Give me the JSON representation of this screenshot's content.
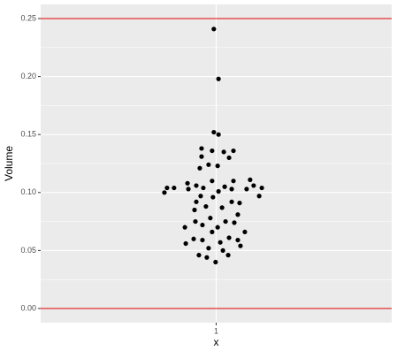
{
  "chart_data": {
    "type": "scatter",
    "xlabel": "x",
    "ylabel": "Volume",
    "xlim": [
      0.4,
      1.6
    ],
    "ylim": [
      -0.0122,
      0.2622
    ],
    "xticks": [
      1
    ],
    "yticks": [
      {
        "value": 0,
        "label": "0.00"
      },
      {
        "value": 0.05,
        "label": "0.05"
      },
      {
        "value": 0.1,
        "label": "0.10"
      },
      {
        "value": 0.15,
        "label": "0.15"
      },
      {
        "value": 0.2,
        "label": "0.20"
      },
      {
        "value": 0.25,
        "label": "0.25"
      }
    ],
    "grid": true,
    "hlines": [
      0,
      0.25
    ],
    "hline_color": "#e00000",
    "color": "#000000",
    "x": [
      0.992,
      1.008,
      0.992,
      1.008,
      0.95,
      0.986,
      1.026,
      1.059,
      0.95,
      1.044,
      0.974,
      1.005,
      0.944,
      1.116,
      0.986,
      1.059,
      0.902,
      0.932,
      1.029,
      1.128,
      0.832,
      0.856,
      0.905,
      0.956,
      1.053,
      1.104,
      1.156,
      0.823,
      1.008,
      1.147,
      0.989,
      0.947,
      0.932,
      1.053,
      1.08,
      0.965,
      1.02,
      0.926,
      1.074,
      0.98,
      0.929,
      1.032,
      1.062,
      0.953,
      1.005,
      0.893,
      0.986,
      1.098,
      0.923,
      0.953,
      1.044,
      1.074,
      1.014,
      0.896,
      1.083,
      0.974,
      1.023,
      0.941,
      0.968,
      1.041,
      0.998
    ],
    "values": [
      0.241,
      0.198,
      0.152,
      0.15,
      0.138,
      0.136,
      0.135,
      0.136,
      0.131,
      0.13,
      0.124,
      0.123,
      0.121,
      0.111,
      0.11,
      0.11,
      0.108,
      0.106,
      0.105,
      0.106,
      0.104,
      0.104,
      0.103,
      0.104,
      0.103,
      0.103,
      0.104,
      0.1,
      0.101,
      0.097,
      0.096,
      0.097,
      0.092,
      0.092,
      0.091,
      0.088,
      0.087,
      0.085,
      0.081,
      0.078,
      0.075,
      0.075,
      0.074,
      0.072,
      0.07,
      0.07,
      0.066,
      0.066,
      0.06,
      0.059,
      0.061,
      0.059,
      0.057,
      0.056,
      0.054,
      0.052,
      0.05,
      0.046,
      0.044,
      0.046,
      0.04
    ]
  }
}
